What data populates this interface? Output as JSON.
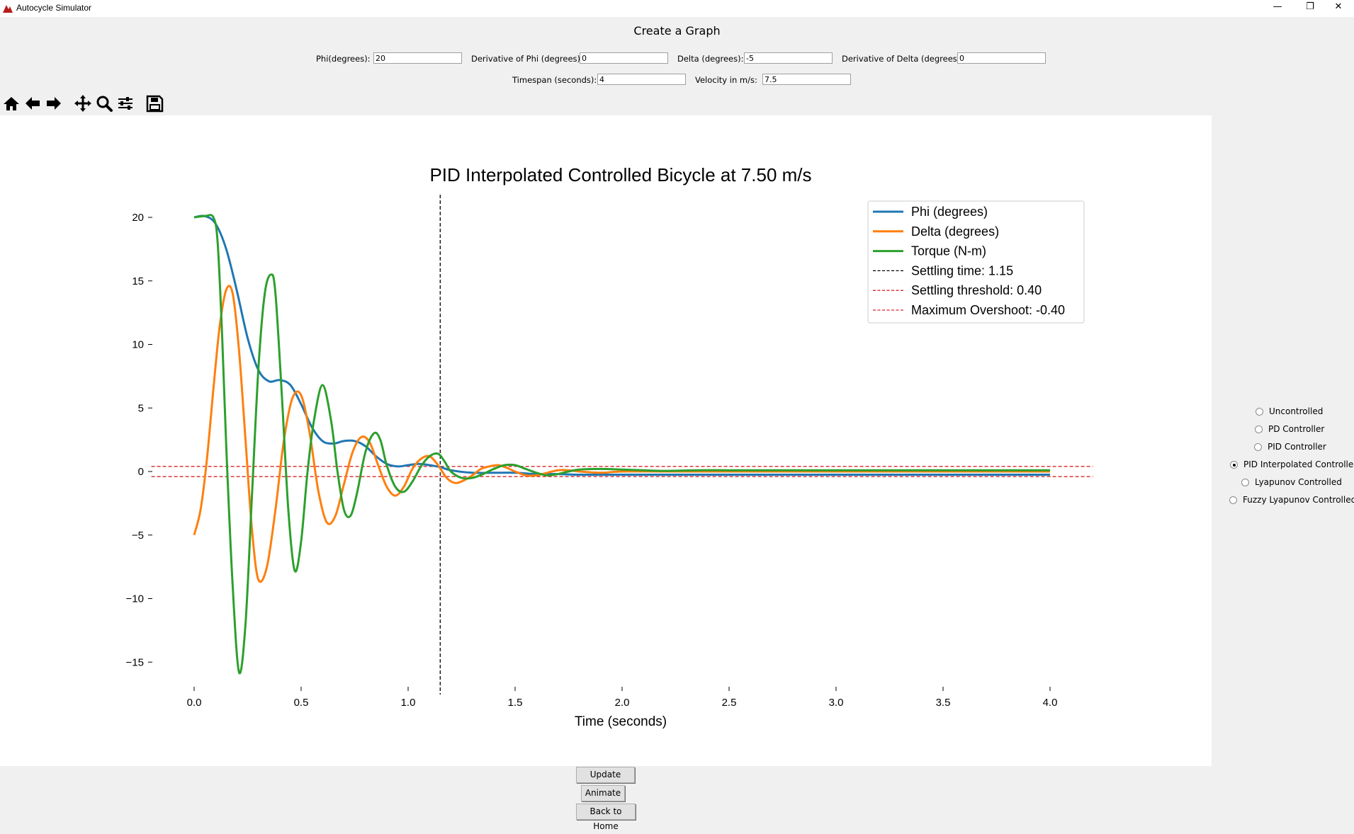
{
  "window": {
    "title": "Autocycle Simulator",
    "minimize": "—",
    "restore": "❐",
    "close": "✕"
  },
  "header": {
    "title": "Create a Graph"
  },
  "form": {
    "phi_label": "Phi(degrees):",
    "phi_value": "20",
    "dphi_label": "Derivative of Phi (degrees):",
    "dphi_value": "0",
    "delta_label": "Delta (degrees):",
    "delta_value": "-5",
    "ddelta_label": "Derivative of Delta (degrees):",
    "ddelta_value": "0",
    "timespan_label": "Timespan (seconds):",
    "timespan_value": "4",
    "velocity_label": "Velocity in m/s:",
    "velocity_value": "7.5"
  },
  "toolbar": {
    "icons": [
      "home-icon",
      "back-arrow-icon",
      "forward-arrow-icon",
      "pan-icon",
      "zoom-icon",
      "configure-icon",
      "save-icon"
    ]
  },
  "controllers": {
    "options": [
      "Uncontrolled",
      "PD Controller",
      "PID Controller",
      "PID Interpolated Controlled",
      "Lyapunov Controlled",
      "Fuzzy Lyapunov Controlled"
    ],
    "selected": "PID Interpolated Controlled"
  },
  "buttons": {
    "update": "Update Graph",
    "animate": "Animate",
    "home": "Back to Home"
  },
  "colors": {
    "phi": "#1f77b4",
    "delta": "#ff7f0e",
    "torque": "#2ca02c",
    "settling_line": "#000000",
    "threshold": "#d62728"
  },
  "chart_data": {
    "type": "line",
    "title": "PID Interpolated Controlled Bicycle at 7.50 m/s",
    "xlabel": "Time (seconds)",
    "ylabel": "",
    "xlim": [
      -0.09,
      4.2
    ],
    "ylim": [
      -17.5,
      21.7
    ],
    "xticks": [
      0.0,
      0.5,
      1.0,
      1.5,
      2.0,
      2.5,
      3.0,
      3.5,
      4.0
    ],
    "xtick_labels": [
      "0.0",
      "0.5",
      "1.0",
      "1.5",
      "2.0",
      "2.5",
      "3.0",
      "3.5",
      "4.0"
    ],
    "yticks": [
      20,
      15,
      10,
      5,
      0,
      -5,
      -10,
      -15
    ],
    "ytick_labels": [
      "20",
      "15",
      "10",
      "5",
      "0",
      "−5",
      "−10",
      "−15"
    ],
    "grid": false,
    "legend_position": "top-right",
    "series": [
      {
        "name": "Phi (degrees)",
        "color": "#1f77b4",
        "x": [
          0,
          0.05,
          0.1,
          0.15,
          0.2,
          0.25,
          0.3,
          0.35,
          0.4,
          0.45,
          0.5,
          0.55,
          0.6,
          0.65,
          0.7,
          0.75,
          0.8,
          0.85,
          0.9,
          0.95,
          1.0,
          1.05,
          1.1,
          1.15,
          1.2,
          1.3,
          1.4,
          1.5,
          1.6,
          1.7,
          1.8,
          2.0,
          2.2,
          2.5,
          3.0,
          3.5,
          4.0
        ],
        "y": [
          20,
          20.1,
          19.5,
          17.5,
          14.2,
          10.5,
          8,
          7.1,
          7.2,
          6.8,
          5.3,
          3.5,
          2.4,
          2.2,
          2.4,
          2.4,
          2,
          1.2,
          0.6,
          0.4,
          0.5,
          0.6,
          0.5,
          0.35,
          0.1,
          -0.1,
          -0.1,
          -0.1,
          -0.2,
          -0.2,
          -0.25,
          -0.25,
          -0.25,
          -0.25,
          -0.25,
          -0.25,
          -0.25
        ]
      },
      {
        "name": "Delta (degrees)",
        "color": "#ff7f0e",
        "x": [
          0,
          0.03,
          0.06,
          0.09,
          0.12,
          0.15,
          0.18,
          0.21,
          0.24,
          0.27,
          0.3,
          0.34,
          0.38,
          0.42,
          0.46,
          0.5,
          0.54,
          0.58,
          0.62,
          0.66,
          0.7,
          0.74,
          0.78,
          0.82,
          0.86,
          0.9,
          0.94,
          0.98,
          1.02,
          1.06,
          1.1,
          1.14,
          1.18,
          1.22,
          1.26,
          1.3,
          1.34,
          1.38,
          1.42,
          1.46,
          1.5,
          1.55,
          1.6,
          1.65,
          1.7,
          1.75,
          1.8,
          1.9,
          2.0,
          2.2,
          2.5,
          3.0,
          3.5,
          4.0
        ],
        "y": [
          -5,
          -3,
          1,
          6.5,
          11.5,
          14.3,
          14,
          9.5,
          2.5,
          -4.5,
          -8.5,
          -7.5,
          -3,
          2.5,
          5.8,
          6,
          3,
          -1.5,
          -4,
          -3.5,
          -1,
          1.5,
          2.7,
          2.3,
          0.5,
          -1.2,
          -1.9,
          -1.2,
          0.2,
          1,
          1.2,
          0.5,
          -0.5,
          -0.9,
          -0.7,
          -0.3,
          0.2,
          0.4,
          0.5,
          0.3,
          0,
          -0.3,
          -0.3,
          -0.1,
          0.1,
          0.1,
          0,
          -0.1,
          0,
          0,
          0,
          0,
          0,
          0
        ]
      },
      {
        "name": "Torque (N-m)",
        "color": "#2ca02c",
        "x": [
          0,
          0.05,
          0.09,
          0.11,
          0.13,
          0.15,
          0.18,
          0.21,
          0.24,
          0.27,
          0.3,
          0.33,
          0.36,
          0.38,
          0.41,
          0.44,
          0.47,
          0.5,
          0.53,
          0.56,
          0.6,
          0.64,
          0.67,
          0.7,
          0.73,
          0.76,
          0.8,
          0.84,
          0.87,
          0.9,
          0.94,
          0.98,
          1.02,
          1.06,
          1.1,
          1.14,
          1.17,
          1.2,
          1.25,
          1.3,
          1.35,
          1.4,
          1.45,
          1.5,
          1.55,
          1.6,
          1.65,
          1.7,
          1.75,
          1.8,
          1.9,
          2.0,
          2.1,
          2.2,
          2.35,
          2.5,
          2.7,
          3.0,
          3.5,
          4.0
        ],
        "y": [
          20,
          20.1,
          20,
          18,
          11,
          2,
          -9,
          -15.8,
          -12,
          -2,
          8,
          14,
          15.5,
          14,
          6,
          -3,
          -7.8,
          -5.5,
          0,
          4,
          6.8,
          4,
          0,
          -3,
          -3.5,
          -1.8,
          1.5,
          3,
          2.5,
          0.5,
          -1.2,
          -1.6,
          -0.8,
          0.4,
          1.2,
          1.4,
          0.8,
          0,
          -0.5,
          -0.5,
          -0.2,
          0.2,
          0.5,
          0.5,
          0.2,
          -0.1,
          -0.3,
          -0.2,
          0,
          0.15,
          0.2,
          0.15,
          0.1,
          0.05,
          0.1,
          0.1,
          0.1,
          0.1,
          0.1,
          0.1
        ]
      }
    ],
    "vlines": [
      {
        "name": "Settling time: 1.15",
        "x": 1.15,
        "color": "#000000"
      }
    ],
    "hlines": [
      {
        "name": "Settling threshold: 0.40",
        "y": 0.4,
        "color": "#d62728"
      },
      {
        "name": "Maximum Overshoot: -0.40",
        "y": -0.4,
        "color": "#d62728"
      }
    ]
  }
}
